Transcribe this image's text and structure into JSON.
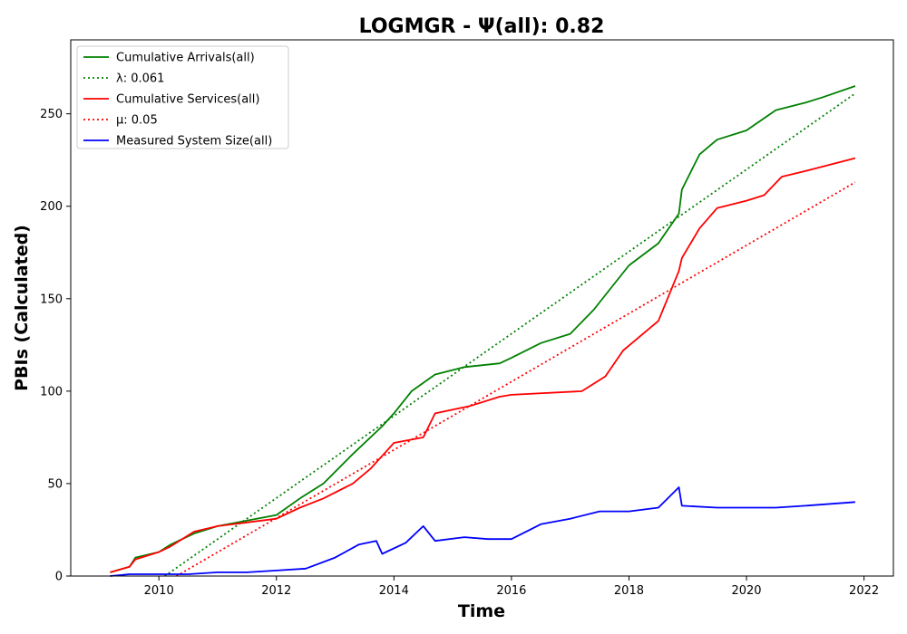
{
  "chart_data": {
    "type": "line",
    "title": "LOGMGR -  Ψ(all): 0.82",
    "xlabel": "Time",
    "ylabel": "PBIs (Calculated)",
    "xlim": [
      2008.5,
      2022.5
    ],
    "ylim": [
      0,
      290
    ],
    "x_ticks": [
      2010,
      2012,
      2014,
      2016,
      2018,
      2020,
      2022
    ],
    "y_ticks": [
      0,
      50,
      100,
      150,
      200,
      250
    ],
    "grid": false,
    "legend_position": "top-left",
    "series": [
      {
        "name": "Cumulative Arrivals(all)",
        "color": "#008000",
        "style": "solid",
        "x": [
          2009.17,
          2009.5,
          2009.6,
          2010.0,
          2010.2,
          2010.6,
          2011.0,
          2011.5,
          2012.0,
          2012.4,
          2012.8,
          2013.3,
          2013.8,
          2014.0,
          2014.3,
          2014.7,
          2015.2,
          2015.8,
          2016.0,
          2016.5,
          2017.0,
          2017.4,
          2017.7,
          2018.0,
          2018.5,
          2018.85,
          2018.9,
          2019.2,
          2019.5,
          2020.0,
          2020.5,
          2021.0,
          2021.3,
          2021.85
        ],
        "y": [
          2,
          5,
          10,
          13,
          17,
          23,
          27,
          30,
          33,
          42,
          50,
          66,
          81,
          88,
          100,
          109,
          113,
          115,
          118,
          126,
          131,
          144,
          156,
          168,
          180,
          196,
          209,
          228,
          236,
          241,
          252,
          256,
          259,
          265
        ]
      },
      {
        "name": "λ: 0.061",
        "color": "#008000",
        "style": "dotted",
        "x": [
          2010.1,
          2021.85
        ],
        "y": [
          0,
          261
        ]
      },
      {
        "name": "Cumulative Services(all)",
        "color": "#ff0000",
        "style": "solid",
        "x": [
          2009.17,
          2009.5,
          2009.6,
          2010.0,
          2010.2,
          2010.6,
          2011.0,
          2011.5,
          2012.0,
          2012.4,
          2012.8,
          2013.3,
          2013.6,
          2013.8,
          2014.0,
          2014.5,
          2014.7,
          2015.3,
          2015.8,
          2016.0,
          2017.2,
          2017.6,
          2017.9,
          2018.5,
          2018.85,
          2018.9,
          2019.2,
          2019.5,
          2020.0,
          2020.3,
          2020.6,
          2021.0,
          2021.85
        ],
        "y": [
          2,
          5,
          9,
          13,
          16,
          24,
          27,
          29,
          31,
          37,
          42,
          50,
          58,
          65,
          72,
          75,
          88,
          92,
          97,
          98,
          100,
          108,
          122,
          138,
          165,
          172,
          188,
          199,
          203,
          206,
          216,
          219,
          226
        ]
      },
      {
        "name": "μ: 0.05",
        "color": "#ff0000",
        "style": "dotted",
        "x": [
          2010.3,
          2021.85
        ],
        "y": [
          0,
          213
        ]
      },
      {
        "name": "Measured System Size(all)",
        "color": "#0000ff",
        "style": "solid",
        "x": [
          2009.17,
          2009.5,
          2010.0,
          2010.5,
          2011.0,
          2011.5,
          2012.0,
          2012.5,
          2013.0,
          2013.4,
          2013.7,
          2013.8,
          2014.2,
          2014.5,
          2014.7,
          2015.2,
          2015.6,
          2016.0,
          2016.5,
          2017.0,
          2017.5,
          2018.0,
          2018.5,
          2018.85,
          2018.9,
          2019.5,
          2020.0,
          2020.5,
          2021.0,
          2021.85
        ],
        "y": [
          0,
          1,
          1,
          1,
          2,
          2,
          3,
          4,
          10,
          17,
          19,
          12,
          18,
          27,
          19,
          21,
          20,
          20,
          28,
          31,
          35,
          35,
          37,
          48,
          38,
          37,
          37,
          37,
          38,
          40
        ]
      }
    ]
  }
}
